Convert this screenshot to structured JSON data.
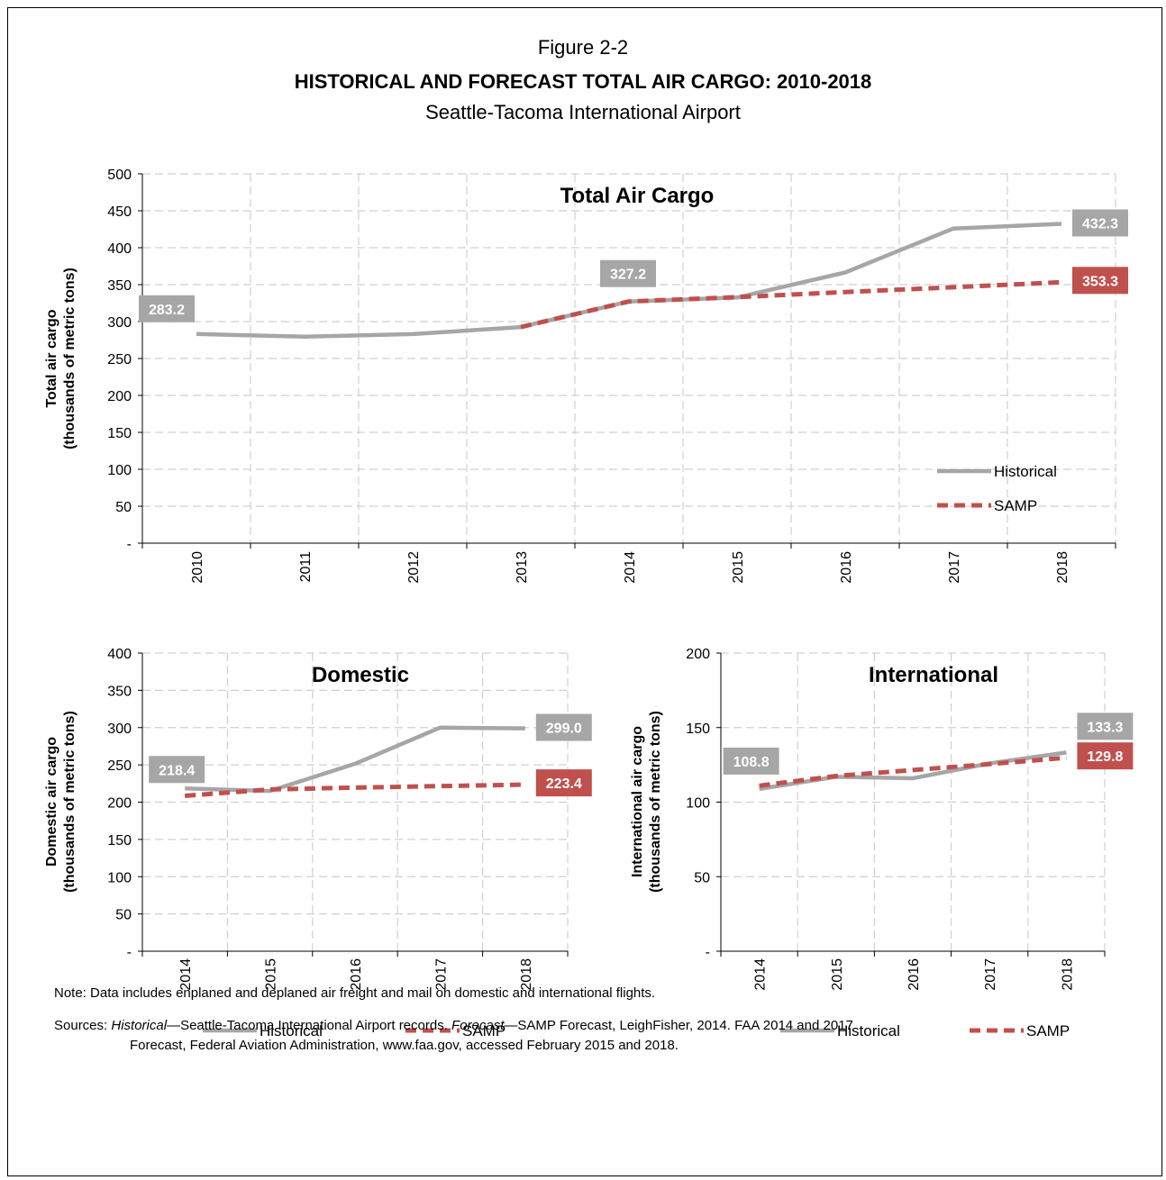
{
  "figure": {
    "label": "Figure 2-2",
    "title": "HISTORICAL AND FORECAST TOTAL AIR CARGO: 2010-2018",
    "subtitle": "Seattle-Tacoma International Airport"
  },
  "colors": {
    "historical": "#a6a6a6",
    "samp": "#c0504d",
    "grid": "#d0d0d0"
  },
  "chart_data": [
    {
      "type": "line",
      "title": "Total Air Cargo",
      "ylabel": [
        "Total air cargo",
        "(thousands of metric tons)"
      ],
      "x": [
        "2010",
        "2011",
        "2012",
        "2013",
        "2014",
        "2015",
        "2016",
        "2017",
        "2018"
      ],
      "ylim": [
        0,
        500
      ],
      "yticks": [
        0,
        50,
        100,
        150,
        200,
        250,
        300,
        350,
        400,
        450,
        500
      ],
      "ytick_labels": [
        "-",
        "50",
        "100",
        "150",
        "200",
        "250",
        "300",
        "350",
        "400",
        "450",
        "500"
      ],
      "grid": true,
      "legend": "bottom-right-stacked",
      "series": [
        {
          "name": "Historical",
          "key": "historical",
          "values": [
            283.2,
            279.5,
            283.0,
            292.5,
            327.2,
            332.5,
            366.5,
            426.0,
            432.3
          ]
        },
        {
          "name": "SAMP",
          "key": "samp",
          "values": [
            null,
            null,
            null,
            292.5,
            327.2,
            333.0,
            340.0,
            346.5,
            353.3
          ]
        }
      ],
      "data_labels": [
        {
          "text": "283.2",
          "series": "historical",
          "index": 0
        },
        {
          "text": "327.2",
          "series": "historical",
          "index": 4
        },
        {
          "text": "432.3",
          "series": "historical",
          "index": 8
        },
        {
          "text": "353.3",
          "series": "samp",
          "index": 8
        }
      ]
    },
    {
      "type": "line",
      "title": "Domestic",
      "ylabel": [
        "Domestic air cargo",
        "(thousands of metric tons)"
      ],
      "x": [
        "2014",
        "2015",
        "2016",
        "2017",
        "2018"
      ],
      "ylim": [
        0,
        400
      ],
      "yticks": [
        0,
        50,
        100,
        150,
        200,
        250,
        300,
        350,
        400
      ],
      "ytick_labels": [
        "-",
        "50",
        "100",
        "150",
        "200",
        "250",
        "300",
        "350",
        "400"
      ],
      "grid": true,
      "legend": "bottom",
      "series": [
        {
          "name": "Historical",
          "key": "historical",
          "values": [
            218.4,
            215.0,
            251.5,
            300.0,
            299.0
          ]
        },
        {
          "name": "SAMP",
          "key": "samp",
          "values": [
            208.5,
            217.0,
            219.5,
            221.5,
            223.4
          ]
        }
      ],
      "data_labels": [
        {
          "text": "218.4",
          "series": "historical",
          "index": 0
        },
        {
          "text": "299.0",
          "series": "historical",
          "index": 4
        },
        {
          "text": "223.4",
          "series": "samp",
          "index": 4
        }
      ]
    },
    {
      "type": "line",
      "title": "International",
      "ylabel": [
        "International air cargo",
        "(thousands of metric tons)"
      ],
      "x": [
        "2014",
        "2015",
        "2016",
        "2017",
        "2018"
      ],
      "ylim": [
        0,
        200
      ],
      "yticks": [
        0,
        50,
        100,
        150,
        200
      ],
      "ytick_labels": [
        "-",
        "50",
        "100",
        "150",
        "200"
      ],
      "grid": true,
      "legend": "bottom",
      "series": [
        {
          "name": "Historical",
          "key": "historical",
          "values": [
            108.8,
            117.0,
            116.0,
            126.0,
            133.3
          ]
        },
        {
          "name": "SAMP",
          "key": "samp",
          "values": [
            111.0,
            117.5,
            121.5,
            125.5,
            129.8
          ]
        }
      ],
      "data_labels": [
        {
          "text": "108.8",
          "series": "historical",
          "index": 0
        },
        {
          "text": "133.3",
          "series": "historical",
          "index": 4
        },
        {
          "text": "129.8",
          "series": "samp",
          "index": 4
        }
      ]
    }
  ],
  "footer": {
    "note": "Note:  Data includes enplaned and deplaned air freight and mail on domestic and international flights.",
    "sources_prefix": "Sources:  ",
    "sources_hist_label": "Historical",
    "sources_hist_text": "—Seattle-Tacoma International Airport records.  ",
    "sources_fc_label": "Forecast",
    "sources_fc_text": "—SAMP Forecast, LeighFisher, 2014.  FAA 2014 and 2017",
    "sources_line2": "Forecast, Federal Aviation Administration, www.faa.gov, accessed February 2015 and 2018."
  }
}
